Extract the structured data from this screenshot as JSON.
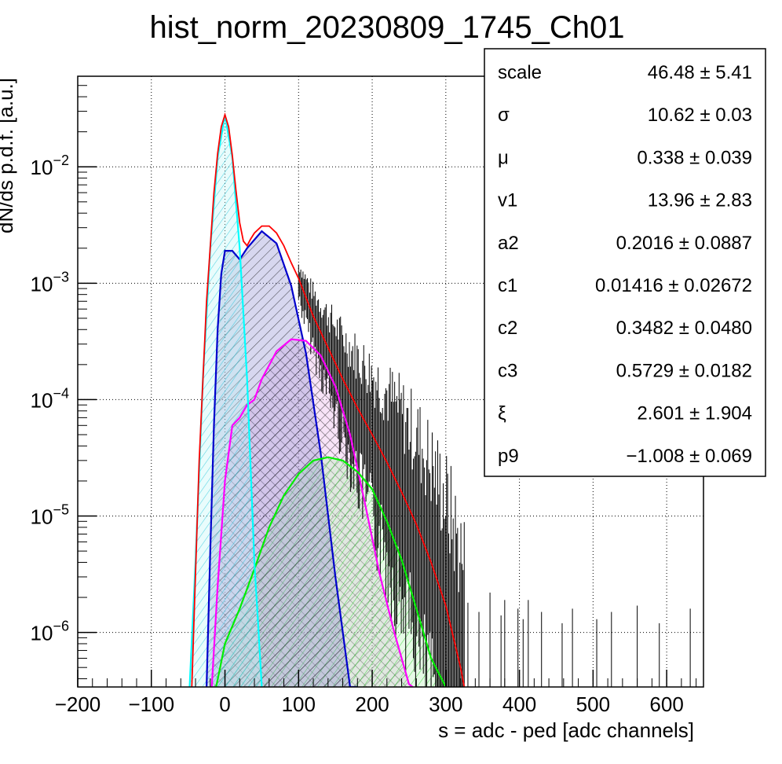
{
  "chart_data": {
    "type": "line",
    "title": "hist_norm_20230809_1745_Ch01",
    "xlabel": "s = adc - ped [adc channels]",
    "ylabel": "dN/ds p.d.f. [a.u.]",
    "xlim": [
      -200,
      650
    ],
    "ylim": [
      3.4e-07,
      0.06
    ],
    "yscale": "log",
    "grid": true,
    "x_ticks": [
      -200,
      -100,
      0,
      100,
      200,
      300,
      400,
      500,
      600
    ],
    "x_tick_labels": [
      "−200",
      "−100",
      "0",
      "100",
      "200",
      "300",
      "400",
      "500",
      "600"
    ],
    "y_ticks": [
      {
        "value": 1e-06,
        "base": "10",
        "exp": "−6"
      },
      {
        "value": 1e-05,
        "base": "10",
        "exp": "−5"
      },
      {
        "value": 0.0001,
        "base": "10",
        "exp": "−4"
      },
      {
        "value": 0.001,
        "base": "10",
        "exp": "−3"
      },
      {
        "value": 0.01,
        "base": "10",
        "exp": "−2"
      }
    ],
    "series": [
      {
        "color": "#ff0000",
        "fill": "none",
        "x": [
          -45,
          -35,
          -25,
          -15,
          -10,
          -5,
          0,
          5,
          10,
          15,
          20,
          25,
          30,
          35,
          40,
          50,
          60,
          70,
          80,
          90,
          100,
          120,
          140,
          160,
          180,
          200,
          220,
          240,
          260,
          280,
          300,
          320,
          325
        ],
        "y": [
          3.4e-07,
          3e-05,
          0.0007,
          0.006,
          0.013,
          0.022,
          0.028,
          0.022,
          0.0125,
          0.0062,
          0.0033,
          0.0023,
          0.0021,
          0.0024,
          0.0027,
          0.0031,
          0.0031,
          0.0027,
          0.0021,
          0.0015,
          0.0011,
          0.00052,
          0.00028,
          0.00015,
          8.5e-05,
          5e-05,
          2.9e-05,
          1.6e-05,
          8.5e-06,
          4e-06,
          1.7e-06,
          5e-07,
          3.4e-07
        ]
      },
      {
        "color": "#00ffff",
        "fill": "#bff7f7",
        "x": [
          -48,
          -40,
          -30,
          -20,
          -10,
          0,
          10,
          20,
          30,
          40,
          45,
          50
        ],
        "y": [
          3.4e-07,
          4e-06,
          0.00015,
          0.002,
          0.012,
          0.028,
          0.012,
          0.002,
          0.00015,
          4e-06,
          1.2e-06,
          3.4e-07
        ]
      },
      {
        "color": "#0000cc",
        "fill": "#8c8cd0",
        "x": [
          -25,
          -20,
          -15,
          -10,
          -5,
          0,
          10,
          20,
          30,
          50,
          70,
          90,
          110,
          130,
          150,
          170,
          180
        ],
        "y": [
          3.4e-07,
          5e-06,
          6e-05,
          0.0004,
          0.0012,
          0.0019,
          0.0019,
          0.0016,
          0.002,
          0.0028,
          0.0022,
          0.00095,
          0.00025,
          3.5e-05,
          3e-06,
          3e-07,
          3.4e-07
        ]
      },
      {
        "color": "#ff00ff",
        "fill": "#e8b0e8",
        "x": [
          -18,
          -10,
          0,
          10,
          20,
          30,
          40,
          50,
          70,
          90,
          110,
          130,
          150,
          170,
          190,
          210,
          230,
          250,
          255
        ],
        "y": [
          3.4e-07,
          2.5e-06,
          2e-05,
          6e-05,
          7e-05,
          9e-05,
          0.0001,
          0.00015,
          0.00026,
          0.00033,
          0.00032,
          0.00024,
          0.00013,
          5e-05,
          1.3e-05,
          3.2e-06,
          1e-06,
          3.6e-07,
          3.4e-07
        ]
      },
      {
        "color": "#00ee00",
        "fill": "#b8f2b8",
        "x": [
          -12,
          0,
          20,
          40,
          60,
          80,
          100,
          120,
          140,
          160,
          180,
          200,
          220,
          240,
          260,
          280,
          300
        ],
        "y": [
          3.4e-07,
          8e-07,
          1.6e-06,
          3.5e-06,
          8e-06,
          1.5e-05,
          2.3e-05,
          3e-05,
          3.2e-05,
          3e-05,
          2.4e-05,
          1.7e-05,
          9e-06,
          4.2e-06,
          1.6e-06,
          6e-07,
          3.4e-07
        ]
      }
    ],
    "stats_box": [
      {
        "name": "scale",
        "value": "46.48",
        "error": "5.41"
      },
      {
        "name": "σ",
        "value": "10.62",
        "error": "0.03"
      },
      {
        "name": "μ",
        "value": "0.338",
        "error": "0.039"
      },
      {
        "name": "v1",
        "value": "13.96",
        "error": "2.83"
      },
      {
        "name": "a2",
        "value": "0.2016",
        "error": "0.0887"
      },
      {
        "name": "c1",
        "value": "0.01416",
        "error": "0.02672"
      },
      {
        "name": "c2",
        "value": "0.3482",
        "error": "0.0480"
      },
      {
        "name": "c3",
        "value": "0.5729",
        "error": "0.0182"
      },
      {
        "name": "ξ",
        "value": "2.601",
        "error": "1.904"
      },
      {
        "name": "p9",
        "value": "−1.008",
        "error": "0.069"
      }
    ],
    "pm_symbol": "±"
  }
}
